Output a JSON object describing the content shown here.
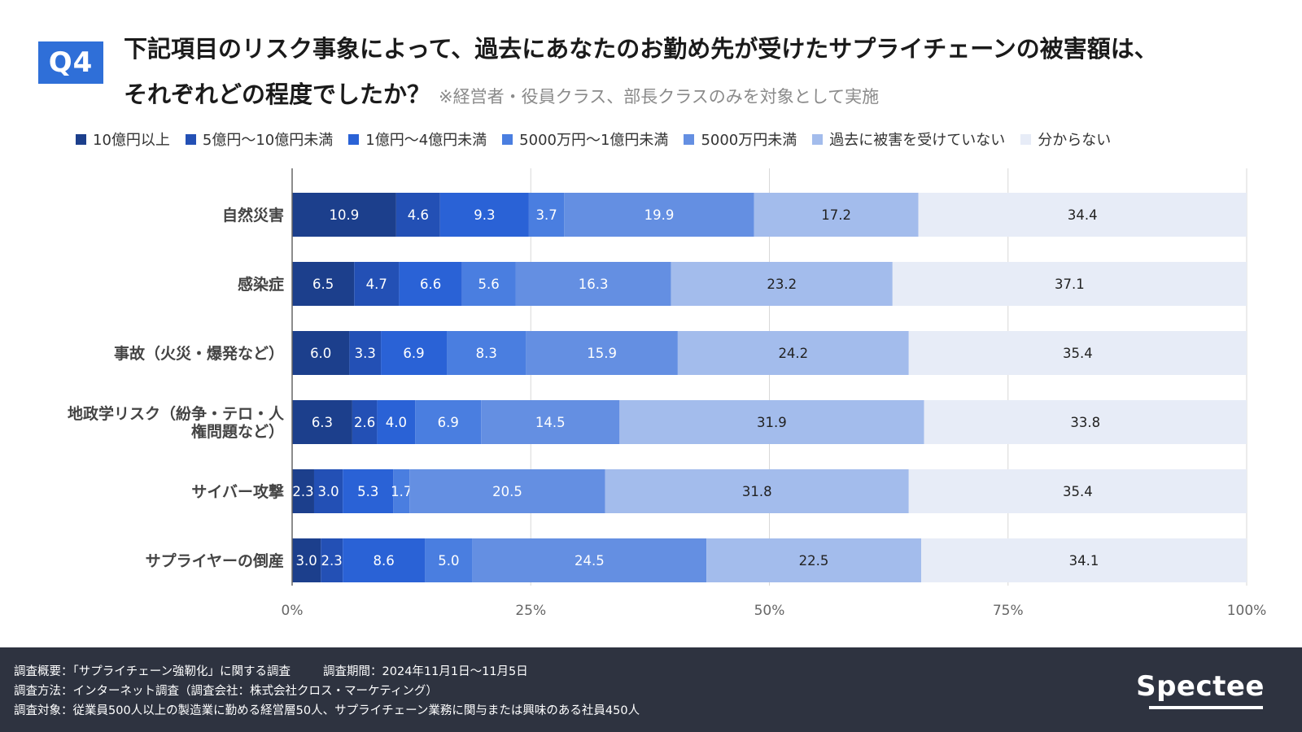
{
  "badge": "Q4",
  "title": {
    "line1": "下記項目のリスク事象によって、過去にあなたのお勤め先が受けたサプライチェーンの被害額は、",
    "line2": "それぞれどの程度でしたか？",
    "note": "※経営者・役員クラス、部長クラスのみを対象として実施"
  },
  "chart_data": {
    "type": "bar",
    "orientation": "horizontal",
    "stacked": "percent",
    "categories": [
      "自然災害",
      "感染症",
      "事故（火災・爆発など）",
      "地政学リスク（紛争・テロ・人権問題など）",
      "サイバー攻撃",
      "サプライヤーの倒産"
    ],
    "category_labels": [
      [
        "自然災害"
      ],
      [
        "感染症"
      ],
      [
        "事故（火災・爆発など）"
      ],
      [
        "地政学リスク（紛争・テロ・人",
        "権問題など）"
      ],
      [
        "サイバー攻撃"
      ],
      [
        "サプライヤーの倒産"
      ]
    ],
    "series": [
      {
        "name": "10億円以上",
        "color": "#1c3f8c",
        "label_color": "#ffffff",
        "values": [
          10.9,
          6.5,
          6.0,
          6.3,
          2.3,
          3.0
        ]
      },
      {
        "name": "5億円〜10億円未満",
        "color": "#2350b5",
        "label_color": "#ffffff",
        "values": [
          4.6,
          4.7,
          3.3,
          2.6,
          3.0,
          2.3
        ]
      },
      {
        "name": "1億円〜4億円未満",
        "color": "#2a62d6",
        "label_color": "#ffffff",
        "values": [
          9.3,
          6.6,
          6.9,
          4.0,
          5.3,
          8.6
        ]
      },
      {
        "name": "5000万円〜1億円未満",
        "color": "#4a7ee0",
        "label_color": "#ffffff",
        "values": [
          3.7,
          5.6,
          8.3,
          6.9,
          1.7,
          5.0
        ]
      },
      {
        "name": "5000万円未満",
        "color": "#648fe2",
        "label_color": "#ffffff",
        "values": [
          19.9,
          16.3,
          15.9,
          14.5,
          20.5,
          24.5
        ]
      },
      {
        "name": "過去に被害を受けていない",
        "color": "#a3bcec",
        "label_color": "#222222",
        "values": [
          17.2,
          23.2,
          24.2,
          31.9,
          31.8,
          22.5
        ]
      },
      {
        "name": "分からない",
        "color": "#e7ecf7",
        "label_color": "#222222",
        "values": [
          34.4,
          37.1,
          35.4,
          33.8,
          35.4,
          34.1
        ]
      }
    ],
    "xlim": [
      0,
      100
    ],
    "xticks": [
      0,
      25,
      50,
      75,
      100
    ],
    "xtick_labels": [
      "0%",
      "25%",
      "50%",
      "75%",
      "100%"
    ],
    "grid": true,
    "legend": "top"
  },
  "footer": {
    "overview_label": "調査概要：「サプライチェーン強靭化」に関する調査",
    "period_label": "調査期間：2024年11月1日〜11月5日",
    "method_label": "調査方法：インターネット調査（調査会社：株式会社クロス・マーケティング）",
    "target_label": "調査対象：従業員500人以上の製造業に勤める経営層50人、サプライチェーン業務に関与または興味のある社員450人",
    "logo": "Spectee"
  }
}
